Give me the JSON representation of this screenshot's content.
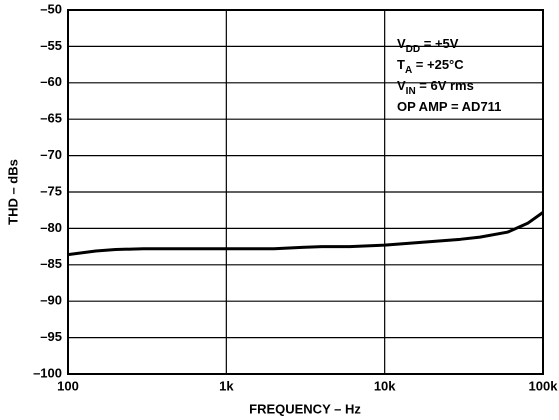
{
  "chart_data": {
    "type": "line",
    "xlabel": "FREQUENCY – Hz",
    "ylabel": "THD – dBs",
    "x": [
      100,
      150,
      200,
      300,
      500,
      1000,
      2000,
      3000,
      4000,
      6000,
      10000,
      20000,
      30000,
      40000,
      60000,
      80000,
      100000
    ],
    "series": [
      {
        "color": "#000000",
        "values": [
          -83.6,
          -83.1,
          -82.9,
          -82.8,
          -82.8,
          -82.8,
          -82.8,
          -82.6,
          -82.5,
          -82.5,
          -82.3,
          -81.8,
          -81.5,
          -81.2,
          -80.5,
          -79.3,
          -77.8
        ]
      }
    ],
    "xlim": [
      100,
      100000
    ],
    "xlog": true,
    "xticks": [
      100,
      {
        "value": 1000,
        "label": "1k"
      },
      {
        "value": 10000,
        "label": "10k"
      },
      {
        "value": 100000,
        "label": "100k"
      }
    ],
    "ylim": [
      -100,
      -50
    ],
    "yticks": [
      {
        "value": -100,
        "label": "–100"
      },
      {
        "value": -95,
        "label": "–95"
      },
      {
        "value": -90,
        "label": "–90"
      },
      {
        "value": -85,
        "label": "–85"
      },
      {
        "value": -80,
        "label": "–80"
      },
      {
        "value": -75,
        "label": "–75"
      },
      {
        "value": -70,
        "label": "–70"
      },
      {
        "value": -65,
        "label": "–65"
      },
      {
        "value": -60,
        "label": "–60"
      },
      {
        "value": -55,
        "label": "–55"
      },
      {
        "value": -50,
        "label": "–50"
      }
    ],
    "grid": true,
    "annotations": [
      {
        "main": "V",
        "sub": "DD",
        "rest": " = +5V"
      },
      {
        "main": "T",
        "sub": "A",
        "rest": " = +25°C"
      },
      {
        "main": "V",
        "sub": "IN",
        "rest": " = 6V rms"
      },
      {
        "main": "OP AMP = AD711"
      }
    ]
  }
}
